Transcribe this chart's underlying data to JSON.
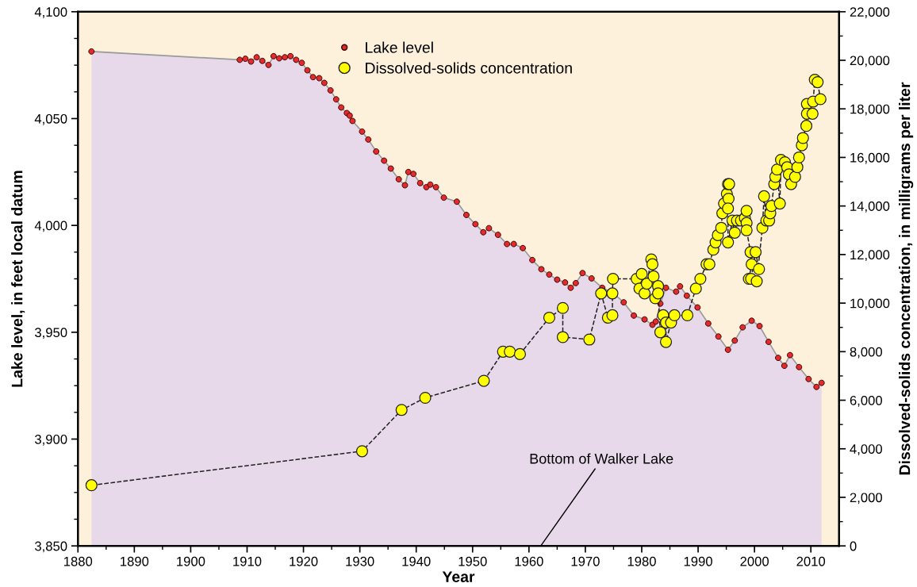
{
  "chart_data": {
    "type": "line",
    "xlabel": "Year",
    "ylabel": "Lake level, in feet local datum",
    "y2label": "Dissolved-solids concentration, in milligrams per liter",
    "xlim": [
      1880,
      2015
    ],
    "xticks": [
      1880,
      1890,
      1900,
      1910,
      1920,
      1930,
      1940,
      1950,
      1960,
      1970,
      1980,
      1990,
      2000,
      2010
    ],
    "ylim": [
      3850,
      4100
    ],
    "yticks": [
      {
        "value": 3850,
        "label": "3,850"
      },
      {
        "value": 3900,
        "label": "3,900"
      },
      {
        "value": 3950,
        "label": "3,950"
      },
      {
        "value": 4000,
        "label": "4,000"
      },
      {
        "value": 4050,
        "label": "4,050"
      },
      {
        "value": 4100,
        "label": "4,100"
      }
    ],
    "y2lim": [
      0,
      22000
    ],
    "y2ticks": [
      0,
      {
        "value": 2000,
        "label": "2,000"
      },
      {
        "value": 4000,
        "label": "4,000"
      },
      {
        "value": 6000,
        "label": "6,000"
      },
      {
        "value": 8000,
        "label": "8,000"
      },
      {
        "value": 10000,
        "label": "10,000"
      },
      {
        "value": 12000,
        "label": "12,000"
      },
      {
        "value": 14000,
        "label": "14,000"
      },
      {
        "value": 16000,
        "label": "16,000"
      },
      {
        "value": 18000,
        "label": "18,000"
      },
      {
        "value": 20000,
        "label": "20,000"
      },
      {
        "value": 22000,
        "label": "22,000"
      }
    ],
    "legend": "top",
    "grid": false,
    "bands": [
      {
        "axis": "x",
        "from": 1880,
        "to": 2015,
        "color": "#fdf1dc"
      }
    ],
    "annotations": [
      {
        "text": "Bottom of Walker Lake",
        "x": 1962.1,
        "y": 3850
      }
    ],
    "series": [
      {
        "name": "Lake level",
        "type": "area",
        "color": "#e32b2b",
        "marker": "circle",
        "line_style": "solid",
        "x": [
          1882.4,
          1908.7,
          1909.7,
          1910.7,
          1911.7,
          1912.7,
          1913.8,
          1914.7,
          1915.7,
          1916.7,
          1917.7,
          1918.7,
          1919.7,
          1920.7,
          1921.7,
          1922.8,
          1923.7,
          1924.8,
          1925.8,
          1926.7,
          1927.7,
          1928.2,
          1928.7,
          1930.4,
          1931.5,
          1932.9,
          1934.3,
          1935.5,
          1936.9,
          1938.0,
          1938.6,
          1939.5,
          1940.7,
          1941.8,
          1942.5,
          1943.5,
          1944.9,
          1947.2,
          1948.9,
          1950.5,
          1951.9,
          1952.9,
          1954.5,
          1956.1,
          1957.3,
          1958.9,
          1960.6,
          1962.2,
          1963.6,
          1965.0,
          1966.4,
          1967.4,
          1968.3,
          1969.5,
          1971.1,
          1973.0,
          1974.9,
          1976.8,
          1978.6,
          1980.5,
          1981.9,
          1982.5,
          1983.3,
          1984.3,
          1986.1,
          1986.8,
          1988.0,
          1989.9,
          1991.8,
          1993.6,
          1995.3,
          1996.5,
          1997.9,
          1999.5,
          2000.9,
          2002.5,
          2004.2,
          2005.3,
          2006.3,
          2007.9,
          2009.6,
          2011.0,
          2011.9
        ],
        "values": [
          4081.4,
          4077.5,
          4078.0,
          4076.7,
          4078.7,
          4077.0,
          4075.1,
          4079.2,
          4078.2,
          4078.7,
          4079.2,
          4077.5,
          4076.1,
          4072.6,
          4069.4,
          4068.9,
          4066.7,
          4063.2,
          4059.0,
          4055.2,
          4052.6,
          4051.4,
          4048.9,
          4043.9,
          4040.2,
          4034.6,
          4030.3,
          4026.6,
          4021.6,
          4018.8,
          4025.0,
          4024.1,
          4019.8,
          4017.9,
          4019.1,
          4017.9,
          4013.0,
          4011.1,
          4004.9,
          4000.6,
          3996.8,
          3998.7,
          3995.6,
          3991.3,
          3991.3,
          3989.4,
          3983.8,
          3979.5,
          3977.0,
          3974.6,
          3973.3,
          3970.8,
          3973.0,
          3977.7,
          3975.2,
          3970.8,
          3968.4,
          3964.0,
          3957.8,
          3956.0,
          3953.5,
          3955.0,
          3963.4,
          3970.8,
          3969.0,
          3971.5,
          3967.1,
          3961.6,
          3954.1,
          3948.0,
          3941.8,
          3946.1,
          3952.3,
          3955.4,
          3952.9,
          3945.5,
          3938.0,
          3934.3,
          3939.3,
          3933.7,
          3928.1,
          3924.4,
          3926.3
        ]
      },
      {
        "name": "Dissolved-solids concentration",
        "axis": "y2",
        "color": "#ffff00",
        "marker": "circle",
        "line_style": "dashed",
        "x": [
          1882.4,
          1930.4,
          1937.4,
          1941.6,
          1952.0,
          1955.4,
          1956.6,
          1958.4,
          1963.6,
          1966.0,
          1966.0,
          1970.7,
          1972.8,
          1974.0,
          1974.8,
          1974.8,
          1974.9,
          1979.1,
          1979.6,
          1980.0,
          1980.5,
          1980.9,
          1981.7,
          1981.9,
          1982.1,
          1982.4,
          1982.9,
          1982.9,
          1983.3,
          1983.8,
          1984.3,
          1984.3,
          1985.2,
          1985.8,
          1988.1,
          1989.6,
          1990.4,
          1991.5,
          1992.0,
          1992.7,
          1993.1,
          1993.5,
          1994.1,
          1994.3,
          1994.6,
          1995.1,
          1995.3,
          1995.5,
          1995.4,
          1995.3,
          1995.3,
          1996.1,
          1996.5,
          1996.9,
          1997.6,
          1998.3,
          1998.6,
          1998.6,
          1998.6,
          1999.3,
          1999.5,
          1999.0,
          1999.4,
          2000.2,
          2000.8,
          2000.4,
          2001.4,
          2001.7,
          2002.1,
          2002.6,
          2002.8,
          2003.0,
          2003.5,
          2003.7,
          2004.0,
          2004.5,
          2004.7,
          2005.4,
          2005.8,
          2006.1,
          2006.5,
          2007.2,
          2007.6,
          2007.9,
          2008.4,
          2008.6,
          2009.2,
          2009.3,
          2009.3,
          2010.3,
          2010.4,
          2010.7,
          2011.2,
          2011.7
        ],
        "values": [
          2500,
          3900,
          5600,
          6100,
          6800,
          8000,
          8000,
          7900,
          9400,
          9800,
          8600,
          8500,
          10400,
          9400,
          9500,
          10400,
          11000,
          11000,
          10600,
          11200,
          10400,
          10800,
          11800,
          11600,
          11100,
          10200,
          10700,
          10400,
          8800,
          9500,
          9200,
          8400,
          9200,
          9500,
          9500,
          10600,
          11000,
          11600,
          11600,
          12200,
          12500,
          12800,
          13100,
          13700,
          14100,
          14500,
          14900,
          14900,
          14300,
          13900,
          12500,
          13400,
          12900,
          13400,
          13400,
          13500,
          13800,
          13300,
          13000,
          12100,
          11600,
          11000,
          11000,
          12100,
          11400,
          10900,
          13100,
          14400,
          13400,
          13400,
          13700,
          14000,
          14900,
          15200,
          15500,
          14100,
          15900,
          15800,
          15600,
          15300,
          14900,
          15200,
          15600,
          16000,
          16500,
          16800,
          17300,
          18200,
          17800,
          17800,
          18300,
          19200,
          19100,
          18400
        ]
      }
    ]
  }
}
